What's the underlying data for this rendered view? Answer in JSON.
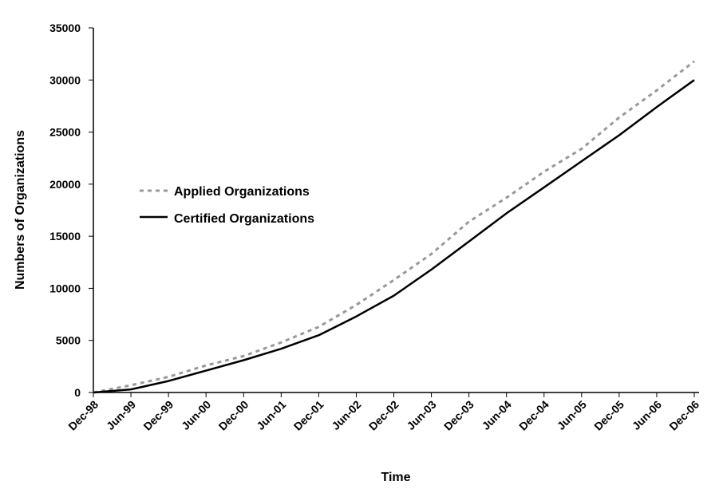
{
  "chart_data": {
    "type": "line",
    "title": "",
    "xlabel": "Time",
    "ylabel": "Numbers of Organizations",
    "ylim": [
      0,
      35000
    ],
    "y_ticks": [
      "0",
      "5000",
      "10000",
      "15000",
      "20000",
      "25000",
      "30000",
      "35000"
    ],
    "categories": [
      "Dec-98",
      "Jun-99",
      "Dec-99",
      "Jun-00",
      "Dec-00",
      "Jun-01",
      "Dec-01",
      "Jun-02",
      "Dec-02",
      "Jun-03",
      "Dec-03",
      "Jun-04",
      "Dec-04",
      "Jun-05",
      "Dec-05",
      "Jun-06",
      "Dec-06"
    ],
    "legend_position": "middle-left",
    "grid": false,
    "series": [
      {
        "name": "Applied Organizations",
        "style": "dashed",
        "color": "#999999",
        "values": [
          0,
          700,
          1500,
          2600,
          3500,
          4800,
          6300,
          8400,
          10800,
          13300,
          16400,
          18700,
          21200,
          23400,
          26400,
          29000,
          31800
        ]
      },
      {
        "name": "Certified Organizations",
        "style": "solid",
        "color": "#000000",
        "values": [
          0,
          300,
          1100,
          2100,
          3100,
          4200,
          5500,
          7300,
          9300,
          11800,
          14500,
          17200,
          19700,
          22200,
          24700,
          27400,
          30000
        ]
      }
    ]
  }
}
